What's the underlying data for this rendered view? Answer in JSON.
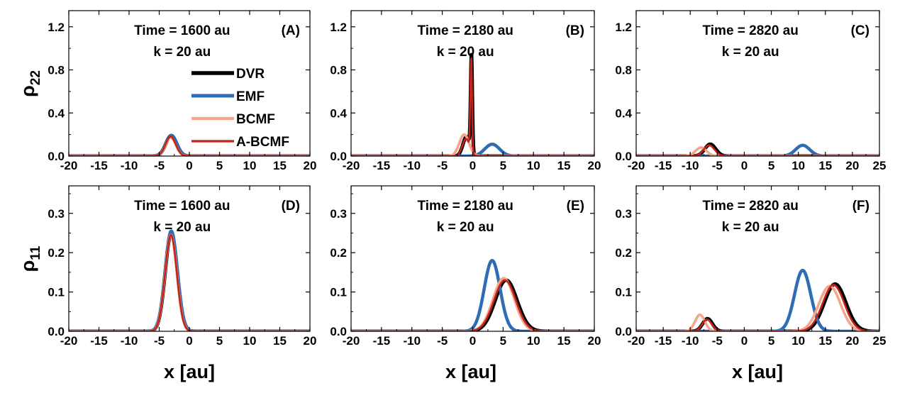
{
  "figure": {
    "ylabel_top": "ρ",
    "ylabel_top_sub": "22",
    "ylabel_bottom": "ρ",
    "ylabel_bottom_sub": "11",
    "xlabel": "x [au]"
  },
  "legend": [
    {
      "name": "DVR",
      "color": "#000000"
    },
    {
      "name": "EMF",
      "color": "#2e6db4"
    },
    {
      "name": "BCMF",
      "color": "#f4a58a"
    },
    {
      "name": "A-BCMF",
      "color": "#c4221a"
    }
  ],
  "chart_data": [
    {
      "id": "A",
      "type": "line",
      "panel_label": "(A)",
      "annotation": [
        "Time = 1600 au",
        "k = 20 au"
      ],
      "xlim": [
        -20,
        20
      ],
      "ylim": [
        0,
        1.35
      ],
      "xticks": [
        -20,
        -15,
        -10,
        -5,
        0,
        5,
        10,
        15,
        20
      ],
      "yticks": [
        0.0,
        0.4,
        0.8,
        1.2
      ],
      "yticklabels": [
        "0.0",
        "0.4",
        "0.8",
        "1.2"
      ],
      "series": [
        {
          "name": "DVR",
          "peaks": [
            {
              "mu": -3.0,
              "amp": 0.19,
              "sigma": 0.9
            }
          ]
        },
        {
          "name": "EMF",
          "peaks": [
            {
              "mu": -3.0,
              "amp": 0.19,
              "sigma": 0.9
            }
          ]
        },
        {
          "name": "BCMF",
          "peaks": [
            {
              "mu": -3.1,
              "amp": 0.17,
              "sigma": 0.85
            }
          ]
        },
        {
          "name": "A-BCMF",
          "peaks": [
            {
              "mu": -3.1,
              "amp": 0.18,
              "sigma": 0.85
            }
          ]
        }
      ]
    },
    {
      "id": "B",
      "type": "line",
      "panel_label": "(B)",
      "annotation": [
        "Time = 2180 au",
        "k = 20 au"
      ],
      "xlim": [
        -20,
        20
      ],
      "ylim": [
        0,
        1.35
      ],
      "xticks": [
        -20,
        -15,
        -10,
        -5,
        0,
        5,
        10,
        15,
        20
      ],
      "yticks": [
        0.0,
        0.4,
        0.8,
        1.2
      ],
      "yticklabels": [
        "0.0",
        "0.4",
        "0.8",
        "1.2"
      ],
      "series": [
        {
          "name": "DVR",
          "peaks": [
            {
              "mu": -1.0,
              "amp": 0.18,
              "sigma": 0.6
            },
            {
              "mu": -0.2,
              "amp": 0.88,
              "sigma": 0.14
            }
          ]
        },
        {
          "name": "EMF",
          "peaks": [
            {
              "mu": 3.2,
              "amp": 0.11,
              "sigma": 1.2
            }
          ]
        },
        {
          "name": "BCMF",
          "peaks": [
            {
              "mu": -1.4,
              "amp": 0.2,
              "sigma": 0.8
            }
          ]
        },
        {
          "name": "A-BCMF",
          "peaks": [
            {
              "mu": -1.1,
              "amp": 0.16,
              "sigma": 0.6
            },
            {
              "mu": -0.25,
              "amp": 0.86,
              "sigma": 0.14
            }
          ]
        }
      ]
    },
    {
      "id": "C",
      "type": "line",
      "panel_label": "(C)",
      "annotation": [
        "Time = 2820 au",
        "k = 20 au"
      ],
      "xlim": [
        -20,
        25
      ],
      "ylim": [
        0,
        1.35
      ],
      "xticks": [
        -20,
        -15,
        -10,
        -5,
        0,
        5,
        10,
        15,
        20,
        25
      ],
      "yticks": [
        0.0,
        0.4,
        0.8,
        1.2
      ],
      "yticklabels": [
        "0.0",
        "0.4",
        "0.8",
        "1.2"
      ],
      "series": [
        {
          "name": "DVR",
          "peaks": [
            {
              "mu": -6.3,
              "amp": 0.11,
              "sigma": 1.0
            }
          ]
        },
        {
          "name": "EMF",
          "peaks": [
            {
              "mu": 10.8,
              "amp": 0.1,
              "sigma": 1.3
            }
          ]
        },
        {
          "name": "BCMF",
          "peaks": [
            {
              "mu": -8.0,
              "amp": 0.08,
              "sigma": 1.0
            }
          ]
        },
        {
          "name": "A-BCMF",
          "peaks": [
            {
              "mu": -6.5,
              "amp": 0.1,
              "sigma": 1.0
            }
          ]
        }
      ]
    },
    {
      "id": "D",
      "type": "line",
      "panel_label": "(D)",
      "annotation": [
        "Time = 1600 au",
        "k = 20 au"
      ],
      "xlim": [
        -20,
        20
      ],
      "ylim": [
        0,
        0.37
      ],
      "xticks": [
        -20,
        -15,
        -10,
        -5,
        0,
        5,
        10,
        15,
        20
      ],
      "yticks": [
        0.0,
        0.1,
        0.2,
        0.3
      ],
      "yticklabels": [
        "0.0",
        "0.1",
        "0.2",
        "0.3"
      ],
      "series": [
        {
          "name": "DVR",
          "peaks": [
            {
              "mu": -3.0,
              "amp": 0.25,
              "sigma": 1.0
            }
          ]
        },
        {
          "name": "EMF",
          "peaks": [
            {
              "mu": -3.0,
              "amp": 0.255,
              "sigma": 1.02
            }
          ]
        },
        {
          "name": "BCMF",
          "peaks": [
            {
              "mu": -3.05,
              "amp": 0.245,
              "sigma": 0.98
            }
          ]
        },
        {
          "name": "A-BCMF",
          "peaks": [
            {
              "mu": -3.05,
              "amp": 0.245,
              "sigma": 0.98
            }
          ]
        }
      ]
    },
    {
      "id": "E",
      "type": "line",
      "panel_label": "(E)",
      "annotation": [
        "Time = 2180 au",
        "k = 20 au"
      ],
      "xlim": [
        -20,
        20
      ],
      "ylim": [
        0,
        0.37
      ],
      "xticks": [
        -20,
        -15,
        -10,
        -5,
        0,
        5,
        10,
        15,
        20
      ],
      "yticks": [
        0.0,
        0.1,
        0.2,
        0.3
      ],
      "yticklabels": [
        "0.0",
        "0.1",
        "0.2",
        "0.3"
      ],
      "series": [
        {
          "name": "DVR",
          "peaks": [
            {
              "mu": 5.5,
              "amp": 0.13,
              "sigma": 1.8
            }
          ]
        },
        {
          "name": "EMF",
          "peaks": [
            {
              "mu": 3.2,
              "amp": 0.18,
              "sigma": 1.3
            }
          ]
        },
        {
          "name": "BCMF",
          "peaks": [
            {
              "mu": 5.1,
              "amp": 0.135,
              "sigma": 1.75
            }
          ]
        },
        {
          "name": "A-BCMF",
          "peaks": [
            {
              "mu": 5.3,
              "amp": 0.13,
              "sigma": 1.8
            }
          ]
        }
      ]
    },
    {
      "id": "F",
      "type": "line",
      "panel_label": "(F)",
      "annotation": [
        "Time = 2820 au",
        "k = 20 au"
      ],
      "xlim": [
        -20,
        25
      ],
      "ylim": [
        0,
        0.37
      ],
      "xticks": [
        -20,
        -15,
        -10,
        -5,
        0,
        5,
        10,
        15,
        20,
        25
      ],
      "yticks": [
        0.0,
        0.1,
        0.2,
        0.3
      ],
      "yticklabels": [
        "0.0",
        "0.1",
        "0.2",
        "0.3"
      ],
      "series": [
        {
          "name": "DVR",
          "peaks": [
            {
              "mu": -6.8,
              "amp": 0.032,
              "sigma": 0.9
            },
            {
              "mu": 16.8,
              "amp": 0.12,
              "sigma": 2.0
            }
          ]
        },
        {
          "name": "EMF",
          "peaks": [
            {
              "mu": 10.8,
              "amp": 0.155,
              "sigma": 1.5
            }
          ]
        },
        {
          "name": "BCMF",
          "peaks": [
            {
              "mu": -8.2,
              "amp": 0.042,
              "sigma": 0.9
            },
            {
              "mu": 15.8,
              "amp": 0.115,
              "sigma": 2.0
            }
          ]
        },
        {
          "name": "A-BCMF",
          "peaks": [
            {
              "mu": -6.9,
              "amp": 0.03,
              "sigma": 0.9
            },
            {
              "mu": 16.5,
              "amp": 0.118,
              "sigma": 2.0
            }
          ]
        }
      ]
    }
  ]
}
